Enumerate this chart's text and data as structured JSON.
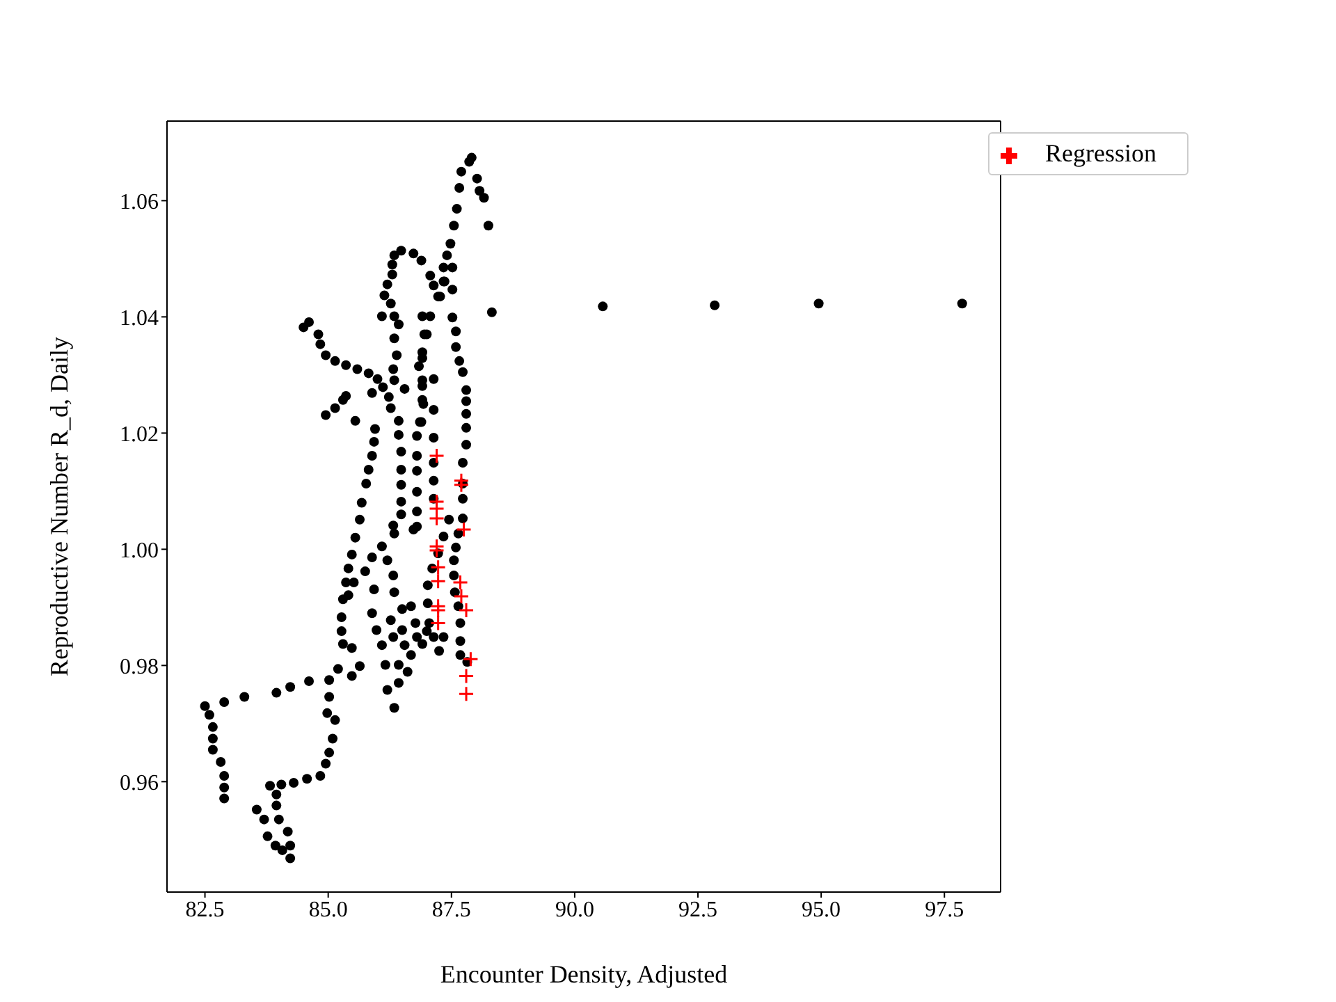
{
  "chart_data": {
    "type": "scatter",
    "xlabel": "Encounter Density, Adjusted",
    "ylabel": "Reproductive Number R_d, Daily",
    "xlim": [
      81.73,
      98.64
    ],
    "ylim": [
      0.941,
      1.0737
    ],
    "xticks": [
      82.5,
      {
        "value": 85,
        "label": "85.0"
      },
      87.5,
      {
        "value": 90,
        "label": "90.0"
      },
      92.5,
      {
        "value": 95,
        "label": "95.0"
      },
      97.5
    ],
    "yticks": [
      0.96,
      0.98,
      {
        "value": 1,
        "label": "1.00"
      },
      1.02,
      1.04,
      1.06
    ],
    "legend": "top right",
    "series": [
      {
        "color": "#000000",
        "marker": "circle",
        "x": [
          88.32,
          90.57,
          92.84,
          94.95,
          97.86,
          87.91,
          87.86,
          87.7,
          87.66,
          87.61,
          87.55,
          87.48,
          87.41,
          87.34,
          87.34,
          87.23,
          87.07,
          87.0,
          86.91,
          86.84,
          86.91,
          86.93,
          86.86,
          86.8,
          86.8,
          86.8,
          86.8,
          86.8,
          86.8,
          88.02,
          88.07,
          88.16,
          88.25,
          87.52,
          87.52,
          87.52,
          87.59,
          87.59,
          87.66,
          87.73,
          87.8,
          87.8,
          87.8,
          87.8,
          87.8,
          87.73,
          87.73,
          87.73,
          87.73,
          87.64,
          87.59,
          87.55,
          87.55,
          87.57,
          87.64,
          87.68,
          87.68,
          87.68,
          87.82,
          86.73,
          86.89,
          87.07,
          87.14,
          87.27,
          87.14,
          87.14,
          87.14,
          87.14,
          87.14,
          87.14,
          87.45,
          87.34,
          87.23,
          87.11,
          87.02,
          87.02,
          87.05,
          87.14,
          87.25,
          87.34,
          85.82,
          85.77,
          85.68,
          85.64,
          85.55,
          85.48,
          85.41,
          85.36,
          85.3,
          85.27,
          85.27,
          85.3,
          85.2,
          86.48,
          86.48,
          86.48,
          86.48,
          86.73,
          86.34,
          86.09,
          85.89,
          85.75,
          85.52,
          85.41,
          86.32,
          86.2,
          86.32,
          86.34,
          85.93,
          85.89,
          85.98,
          86.09,
          86.16,
          86.2,
          86.34,
          86.43,
          86.43,
          86.32,
          86.27,
          86.5,
          86.68,
          86.77,
          86.68,
          86.61,
          86.55,
          86.5,
          86.8,
          86.91,
          87.0,
          85.48,
          85.64,
          85.48,
          84.61,
          84.23,
          83.95,
          85.02,
          85.02,
          84.98,
          85.14,
          85.09,
          85.02,
          84.95,
          84.84,
          84.57,
          84.3,
          84.05,
          83.82,
          83.95,
          83.95,
          84.0,
          84.18,
          84.23,
          84.23,
          84.07,
          83.93,
          83.77,
          83.7,
          83.55,
          82.5,
          82.59,
          82.66,
          82.66,
          82.66,
          82.82,
          82.89,
          82.89,
          82.89,
          82.89,
          83.3,
          84.5,
          84.61,
          84.8,
          84.84,
          84.95,
          85.14,
          85.36,
          85.59,
          85.82,
          86.0,
          86.11,
          86.23,
          86.27,
          86.43,
          86.43,
          86.48,
          84.95,
          85.14,
          85.3,
          85.36,
          85.55,
          85.89,
          85.95,
          85.93,
          85.89,
          86.09,
          86.14,
          86.2,
          86.3,
          86.3,
          86.34,
          86.48,
          86.27,
          86.34,
          86.43,
          86.34,
          86.39,
          86.32,
          86.34,
          86.55,
          86.91,
          86.95,
          86.91,
          86.91,
          86.91,
          86.89,
          87.36
        ],
        "values": [
          1.0408,
          1.0418,
          1.042,
          1.0423,
          1.0423,
          1.0674,
          1.0667,
          1.065,
          1.0622,
          1.0586,
          1.0557,
          1.0526,
          1.0506,
          1.0485,
          1.0461,
          1.0435,
          1.0401,
          1.037,
          1.0329,
          1.0315,
          1.0281,
          1.025,
          1.0219,
          1.0195,
          1.0161,
          1.0135,
          1.0099,
          1.0065,
          1.0039,
          1.0638,
          1.0617,
          1.0605,
          1.0557,
          1.0485,
          1.0447,
          1.0399,
          1.0375,
          1.0348,
          1.0324,
          1.0305,
          1.0274,
          1.0255,
          1.0233,
          1.0209,
          1.018,
          1.0149,
          1.0113,
          1.0087,
          1.0053,
          1.0027,
          1.0003,
          0.9981,
          0.9955,
          0.9926,
          0.9902,
          0.9873,
          0.9842,
          0.9818,
          0.9806,
          1.0509,
          1.0497,
          1.0471,
          1.0454,
          1.0435,
          1.0293,
          1.024,
          1.0192,
          1.0149,
          1.0118,
          1.0087,
          1.0051,
          1.0022,
          0.9993,
          0.9967,
          0.9938,
          0.9907,
          0.9873,
          0.9849,
          0.9825,
          0.9849,
          1.0137,
          1.0113,
          1.008,
          1.0051,
          1.002,
          0.9991,
          0.9967,
          0.9943,
          0.9914,
          0.9883,
          0.9859,
          0.9837,
          0.9794,
          1.0137,
          1.0111,
          1.0082,
          1.006,
          1.0034,
          1.0027,
          1.0005,
          0.9986,
          0.9962,
          0.9943,
          0.9921,
          1.0041,
          0.9981,
          0.9955,
          0.9926,
          0.9931,
          0.989,
          0.9861,
          0.9835,
          0.9801,
          0.9758,
          0.9727,
          0.977,
          0.9801,
          0.9849,
          0.9878,
          0.9897,
          0.9902,
          0.9873,
          0.9818,
          0.9789,
          0.9835,
          0.9861,
          0.9849,
          0.9837,
          0.9859,
          0.983,
          0.9799,
          0.9782,
          0.9773,
          0.9763,
          0.9753,
          0.9775,
          0.9746,
          0.9718,
          0.9706,
          0.9674,
          0.965,
          0.9631,
          0.961,
          0.9605,
          0.9598,
          0.9595,
          0.9593,
          0.9578,
          0.9559,
          0.9535,
          0.9514,
          0.949,
          0.9468,
          0.9482,
          0.949,
          0.9506,
          0.9535,
          0.9552,
          0.973,
          0.9715,
          0.9694,
          0.9674,
          0.9655,
          0.9634,
          0.961,
          0.959,
          0.9571,
          0.9737,
          0.9746,
          1.0382,
          1.0391,
          1.037,
          1.0353,
          1.0334,
          1.0324,
          1.0317,
          1.031,
          1.0303,
          1.0293,
          1.0279,
          1.0262,
          1.0243,
          1.0221,
          1.0197,
          1.0168,
          1.0231,
          1.0243,
          1.0257,
          1.0264,
          1.0221,
          1.0269,
          1.0207,
          1.0185,
          1.0161,
          1.0401,
          1.0437,
          1.0456,
          1.0473,
          1.049,
          1.0506,
          1.0514,
          1.0423,
          1.0401,
          1.0387,
          1.0363,
          1.0334,
          1.031,
          1.0291,
          1.0276,
          1.0401,
          1.037,
          1.0339,
          1.0291,
          1.0257,
          1.0219,
          1.0461
        ]
      },
      {
        "name": "Regression",
        "color": "#ff0000",
        "marker": "cross",
        "x": [
          87.2,
          87.2,
          87.2,
          87.2,
          87.2,
          87.2,
          87.23,
          87.23,
          87.23,
          87.23,
          87.23,
          87.7,
          87.7,
          87.75,
          87.68,
          87.7,
          87.8,
          87.89,
          87.8,
          87.8
        ],
        "values": [
          1.0161,
          1.0082,
          1.007,
          1.0053,
          1.0005,
          0.9998,
          0.9969,
          0.9945,
          0.9902,
          0.9895,
          0.9873,
          1.0118,
          1.0111,
          1.0034,
          0.9943,
          0.9919,
          0.9895,
          0.9811,
          0.9782,
          0.9751
        ]
      }
    ]
  }
}
